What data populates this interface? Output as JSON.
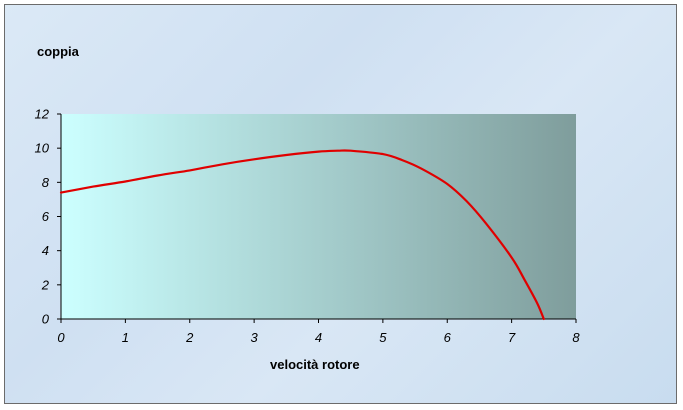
{
  "chart_data": {
    "type": "line",
    "title": "",
    "ylabel": "coppia",
    "xlabel": "velocità rotore",
    "xlim": [
      0,
      8
    ],
    "ylim": [
      0,
      12
    ],
    "xticks": [
      0,
      1,
      2,
      3,
      4,
      5,
      6,
      7,
      8
    ],
    "yticks": [
      0,
      2,
      4,
      6,
      8,
      10,
      12
    ],
    "grid": false,
    "legend": "none",
    "colors": {
      "line": "#e00000",
      "plot_bg_start": "#ccffff",
      "plot_bg_end": "#7f9d9c"
    },
    "series": [
      {
        "x": [
          0,
          0.5,
          1,
          1.5,
          2,
          2.5,
          3,
          3.5,
          4,
          4.3,
          4.5,
          5,
          5.3,
          5.6,
          6,
          6.3,
          6.6,
          7,
          7.2,
          7.4,
          7.5
        ],
        "y": [
          7.4,
          7.75,
          8.05,
          8.4,
          8.7,
          9.05,
          9.35,
          9.6,
          9.8,
          9.85,
          9.85,
          9.65,
          9.3,
          8.8,
          7.9,
          6.9,
          5.6,
          3.6,
          2.3,
          0.9,
          0
        ]
      }
    ]
  }
}
